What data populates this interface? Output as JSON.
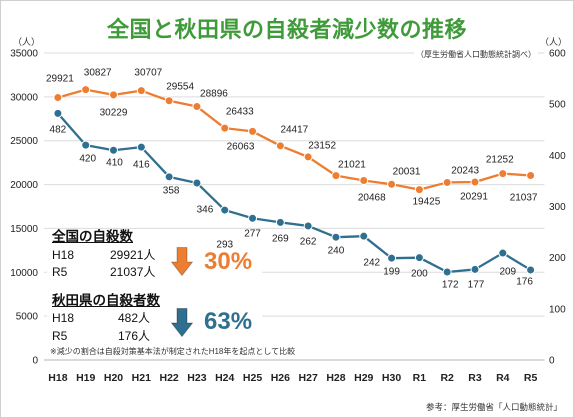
{
  "source_note": "（厚生労働省人口動態統計調べ）",
  "reference": "参考：厚生労働省「人口動態統計」",
  "footnote": "※減少の割合は自殺対策基本法が制定されたH18年を起点として比較",
  "colors": {
    "title": "#3f9b3a",
    "national": "#ed7d31",
    "akita": "#2f6f8f",
    "grid": "#dcdcdc",
    "text": "#222222"
  },
  "summary": {
    "national": {
      "heading": "全国の自殺数",
      "rows": [
        {
          "label": "H18",
          "value": "29921人"
        },
        {
          "label": "R5",
          "value": "21037人"
        }
      ],
      "change": "30%",
      "icon": "down-arrow-icon"
    },
    "akita": {
      "heading": "秋田県の自殺者数",
      "rows": [
        {
          "label": "H18",
          "value": "482人"
        },
        {
          "label": "R5",
          "value": "176人"
        }
      ],
      "change": "63%",
      "icon": "down-arrow-icon"
    }
  },
  "chart_data": {
    "type": "line",
    "title": "全国と秋田県の自殺者減少数の推移",
    "categories": [
      "H18",
      "H19",
      "H20",
      "H21",
      "H22",
      "H23",
      "H24",
      "H25",
      "H26",
      "H27",
      "H28",
      "H29",
      "H30",
      "R1",
      "R2",
      "R3",
      "R4",
      "R5"
    ],
    "series": [
      {
        "axis": "left",
        "color": "#ed7d31",
        "values": [
          29921,
          30827,
          30229,
          30707,
          29554,
          28896,
          26433,
          26063,
          24417,
          23152,
          21021,
          20468,
          20031,
          19425,
          20243,
          20291,
          21252,
          21037
        ]
      },
      {
        "axis": "right",
        "color": "#2f6f8f",
        "values": [
          482,
          420,
          410,
          416,
          358,
          346,
          293,
          277,
          269,
          262,
          240,
          242,
          199,
          200,
          172,
          177,
          209,
          176
        ]
      }
    ],
    "y_left": {
      "unit": "（人）",
      "range": [
        0,
        35000
      ],
      "ticks": [
        0,
        5000,
        10000,
        15000,
        20000,
        25000,
        30000,
        35000
      ]
    },
    "y_right": {
      "unit": "（人）",
      "range": [
        0,
        600
      ],
      "ticks": [
        0,
        100,
        200,
        300,
        400,
        500,
        600
      ]
    },
    "grid": true,
    "data_labels": true,
    "legend": "none"
  }
}
